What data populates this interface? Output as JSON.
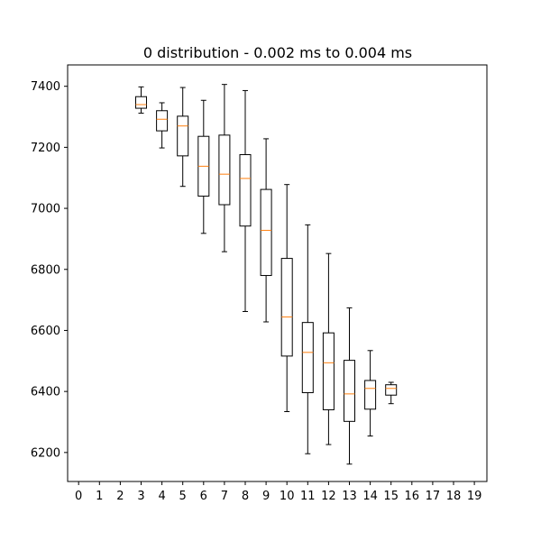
{
  "chart_data": {
    "type": "box",
    "title": "0 distribution - 0.002 ms to 0.004 ms",
    "xlabel": "",
    "ylabel": "",
    "categories": [
      "0",
      "1",
      "2",
      "3",
      "4",
      "5",
      "6",
      "7",
      "8",
      "9",
      "10",
      "11",
      "12",
      "13",
      "14",
      "15",
      "16",
      "17",
      "18",
      "19"
    ],
    "ylim": [
      6105,
      7470
    ],
    "yticks": [
      6200,
      6400,
      6600,
      6800,
      7000,
      7200,
      7400
    ],
    "grid": false,
    "colors": {
      "box": "#000000",
      "median": "#ff7f0e",
      "axes": "#000000"
    },
    "boxes": [
      {
        "x": 3,
        "whisker_low": 7312,
        "q1": 7328,
        "median": 7340,
        "q3": 7366,
        "whisker_high": 7398
      },
      {
        "x": 4,
        "whisker_low": 7198,
        "q1": 7254,
        "median": 7292,
        "q3": 7320,
        "whisker_high": 7346
      },
      {
        "x": 5,
        "whisker_low": 7072,
        "q1": 7172,
        "median": 7270,
        "q3": 7302,
        "whisker_high": 7396
      },
      {
        "x": 6,
        "whisker_low": 6918,
        "q1": 7040,
        "median": 7138,
        "q3": 7236,
        "whisker_high": 7354
      },
      {
        "x": 7,
        "whisker_low": 6858,
        "q1": 7012,
        "median": 7112,
        "q3": 7240,
        "whisker_high": 7406
      },
      {
        "x": 8,
        "whisker_low": 6662,
        "q1": 6942,
        "median": 7098,
        "q3": 7176,
        "whisker_high": 7386
      },
      {
        "x": 9,
        "whisker_low": 6628,
        "q1": 6780,
        "median": 6928,
        "q3": 7062,
        "whisker_high": 7228
      },
      {
        "x": 10,
        "whisker_low": 6334,
        "q1": 6516,
        "median": 6644,
        "q3": 6836,
        "whisker_high": 7078
      },
      {
        "x": 11,
        "whisker_low": 6196,
        "q1": 6396,
        "median": 6528,
        "q3": 6626,
        "whisker_high": 6946
      },
      {
        "x": 12,
        "whisker_low": 6226,
        "q1": 6340,
        "median": 6494,
        "q3": 6592,
        "whisker_high": 6852
      },
      {
        "x": 13,
        "whisker_low": 6162,
        "q1": 6302,
        "median": 6392,
        "q3": 6502,
        "whisker_high": 6674
      },
      {
        "x": 14,
        "whisker_low": 6254,
        "q1": 6342,
        "median": 6410,
        "q3": 6436,
        "whisker_high": 6534
      },
      {
        "x": 15,
        "whisker_low": 6360,
        "q1": 6388,
        "median": 6410,
        "q3": 6422,
        "whisker_high": 6430
      }
    ]
  }
}
